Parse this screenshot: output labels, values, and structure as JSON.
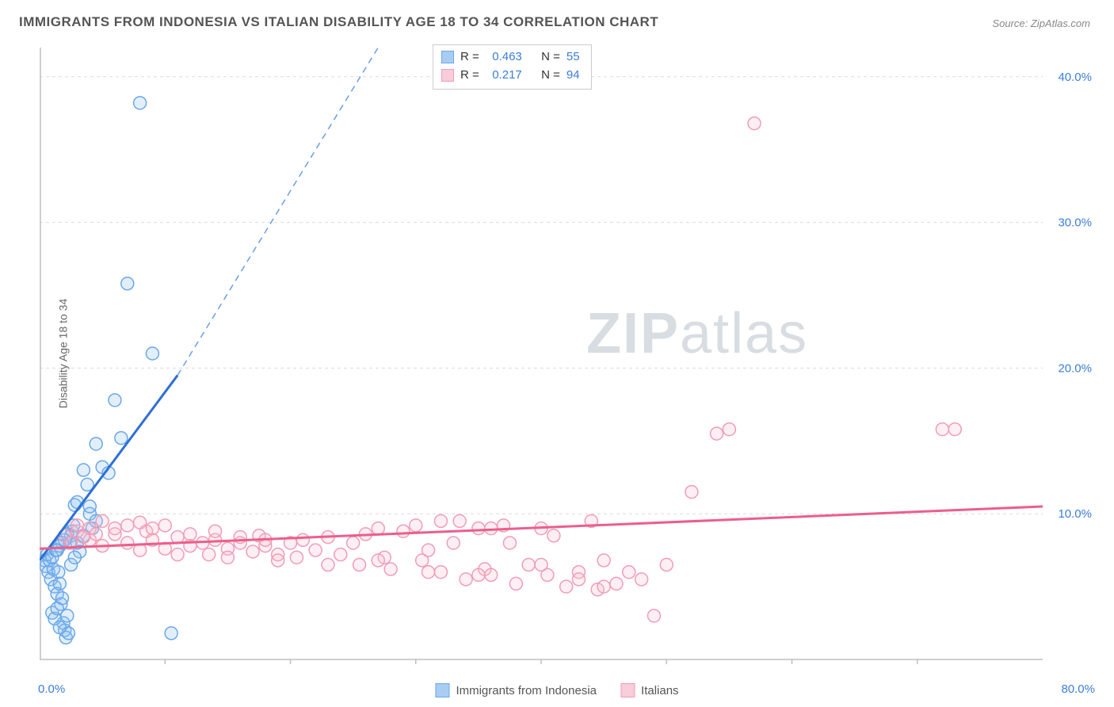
{
  "title": "IMMIGRANTS FROM INDONESIA VS ITALIAN DISABILITY AGE 18 TO 34 CORRELATION CHART",
  "source_label": "Source:",
  "source_value": "ZipAtlas.com",
  "y_axis_label": "Disability Age 18 to 34",
  "watermark_bold": "ZIP",
  "watermark_light": "atlas",
  "chart": {
    "type": "scatter",
    "xlim": [
      0,
      80
    ],
    "ylim": [
      0,
      42
    ],
    "x_ticks": [
      0,
      80
    ],
    "x_tick_labels": [
      "0.0%",
      "80.0%"
    ],
    "y_ticks": [
      10,
      20,
      30,
      40
    ],
    "y_tick_labels": [
      "10.0%",
      "20.0%",
      "30.0%",
      "40.0%"
    ],
    "grid_color": "#dcdcdc",
    "axis_color": "#bfbfbf",
    "background_color": "#ffffff",
    "marker_radius": 8,
    "marker_stroke_width": 1.5,
    "marker_fill_opacity": 0.25,
    "series": [
      {
        "name": "Immigrants from Indonesia",
        "color_stroke": "#6aa7e8",
        "color_fill": "#8cbef0",
        "trend_color": "#2e6fd6",
        "R": "0.463",
        "N": "55",
        "trend": {
          "x1": 0,
          "y1": 6.8,
          "x2_solid": 11,
          "y2_solid": 19.5,
          "x2_dash": 27,
          "y2_dash": 42
        },
        "points": [
          [
            0.4,
            6.8
          ],
          [
            0.5,
            6.4
          ],
          [
            0.6,
            7.2
          ],
          [
            0.7,
            6.0
          ],
          [
            0.8,
            6.8
          ],
          [
            0.9,
            5.5
          ],
          [
            1.0,
            7.0
          ],
          [
            1.1,
            6.2
          ],
          [
            1.2,
            5.0
          ],
          [
            1.3,
            7.5
          ],
          [
            1.4,
            4.5
          ],
          [
            1.5,
            6.0
          ],
          [
            1.6,
            5.2
          ],
          [
            1.7,
            3.8
          ],
          [
            1.8,
            4.2
          ],
          [
            1.9,
            2.5
          ],
          [
            2.0,
            2.0
          ],
          [
            2.1,
            1.5
          ],
          [
            2.2,
            3.0
          ],
          [
            2.3,
            1.8
          ],
          [
            2.4,
            8.0
          ],
          [
            2.5,
            8.5
          ],
          [
            2.6,
            8.8
          ],
          [
            2.7,
            9.2
          ],
          [
            1.0,
            3.2
          ],
          [
            1.2,
            2.8
          ],
          [
            1.4,
            3.5
          ],
          [
            1.6,
            2.2
          ],
          [
            2.8,
            10.6
          ],
          [
            3.0,
            8.0
          ],
          [
            3.2,
            7.4
          ],
          [
            3.5,
            13.0
          ],
          [
            3.8,
            12.0
          ],
          [
            4.0,
            10.0
          ],
          [
            4.2,
            9.0
          ],
          [
            4.5,
            14.8
          ],
          [
            5.0,
            13.2
          ],
          [
            5.5,
            12.8
          ],
          [
            6.0,
            17.8
          ],
          [
            6.5,
            15.2
          ],
          [
            7.0,
            25.8
          ],
          [
            8.0,
            38.2
          ],
          [
            9.0,
            21.0
          ],
          [
            10.5,
            1.8
          ],
          [
            2.0,
            8.2
          ],
          [
            2.2,
            8.6
          ],
          [
            1.8,
            8.0
          ],
          [
            1.6,
            7.8
          ],
          [
            1.4,
            7.5
          ],
          [
            3.0,
            10.8
          ],
          [
            2.5,
            6.5
          ],
          [
            2.8,
            7.0
          ],
          [
            3.5,
            8.5
          ],
          [
            4.0,
            10.5
          ],
          [
            4.5,
            9.5
          ]
        ]
      },
      {
        "name": "Italians",
        "color_stroke": "#f19cb7",
        "color_fill": "#f7bfd0",
        "trend_color": "#ec5e8c",
        "R": "0.217",
        "N": "94",
        "trend": {
          "x1": 0,
          "y1": 7.6,
          "x2_solid": 80,
          "y2_solid": 10.5
        },
        "points": [
          [
            2,
            8.5
          ],
          [
            3,
            8.8
          ],
          [
            4,
            8.2
          ],
          [
            5,
            7.8
          ],
          [
            6,
            8.6
          ],
          [
            7,
            8.0
          ],
          [
            8,
            7.5
          ],
          [
            8.5,
            8.8
          ],
          [
            9,
            8.2
          ],
          [
            10,
            7.6
          ],
          [
            11,
            8.4
          ],
          [
            12,
            7.8
          ],
          [
            13,
            8.0
          ],
          [
            13.5,
            7.2
          ],
          [
            14,
            8.2
          ],
          [
            15,
            7.6
          ],
          [
            16,
            8.0
          ],
          [
            17,
            7.4
          ],
          [
            17.5,
            8.5
          ],
          [
            18,
            7.8
          ],
          [
            19,
            7.2
          ],
          [
            20,
            8.0
          ],
          [
            20.5,
            7.0
          ],
          [
            21,
            8.2
          ],
          [
            22,
            7.5
          ],
          [
            23,
            8.4
          ],
          [
            24,
            7.2
          ],
          [
            25,
            8.0
          ],
          [
            25.5,
            6.5
          ],
          [
            26,
            8.6
          ],
          [
            27,
            9.0
          ],
          [
            27.5,
            7.0
          ],
          [
            28,
            6.2
          ],
          [
            29,
            8.8
          ],
          [
            30,
            9.2
          ],
          [
            30.5,
            6.8
          ],
          [
            31,
            7.5
          ],
          [
            32,
            6.0
          ],
          [
            33,
            8.0
          ],
          [
            33.5,
            9.5
          ],
          [
            34,
            5.5
          ],
          [
            35,
            9.0
          ],
          [
            35.5,
            6.2
          ],
          [
            36,
            5.8
          ],
          [
            37,
            9.2
          ],
          [
            37.5,
            8.0
          ],
          [
            38,
            5.2
          ],
          [
            39,
            6.5
          ],
          [
            40,
            9.0
          ],
          [
            40.5,
            5.8
          ],
          [
            41,
            8.5
          ],
          [
            42,
            5.0
          ],
          [
            43,
            6.0
          ],
          [
            44,
            9.5
          ],
          [
            44.5,
            4.8
          ],
          [
            45,
            6.8
          ],
          [
            46,
            5.2
          ],
          [
            47,
            6.0
          ],
          [
            48,
            5.5
          ],
          [
            49,
            3.0
          ],
          [
            50,
            6.5
          ],
          [
            52,
            11.5
          ],
          [
            54,
            15.5
          ],
          [
            55,
            15.8
          ],
          [
            57,
            36.8
          ],
          [
            72,
            15.8
          ],
          [
            73,
            15.8
          ],
          [
            3,
            9.2
          ],
          [
            4,
            9.0
          ],
          [
            5,
            9.5
          ],
          [
            6,
            9.0
          ],
          [
            7,
            9.2
          ],
          [
            8,
            9.4
          ],
          [
            9,
            9.0
          ],
          [
            10,
            9.2
          ],
          [
            2.5,
            8.0
          ],
          [
            3.5,
            8.4
          ],
          [
            4.5,
            8.6
          ],
          [
            12,
            8.6
          ],
          [
            14,
            8.8
          ],
          [
            16,
            8.4
          ],
          [
            18,
            8.2
          ],
          [
            11,
            7.2
          ],
          [
            15,
            7.0
          ],
          [
            19,
            6.8
          ],
          [
            23,
            6.5
          ],
          [
            27,
            6.8
          ],
          [
            31,
            6.0
          ],
          [
            35,
            5.8
          ],
          [
            32,
            9.5
          ],
          [
            36,
            9.0
          ],
          [
            40,
            6.5
          ],
          [
            43,
            5.5
          ],
          [
            45,
            5.0
          ]
        ]
      }
    ]
  },
  "legend": {
    "items": [
      {
        "label": "Immigrants from Indonesia",
        "fill": "#a9cdf2",
        "stroke": "#6aa7e8"
      },
      {
        "label": "Italians",
        "fill": "#f7cdd9",
        "stroke": "#f19cb7"
      }
    ]
  },
  "stats_box": {
    "rows": [
      {
        "swatch_fill": "#a9cdf2",
        "swatch_stroke": "#6aa7e8",
        "r_label": "R =",
        "r_val": "0.463",
        "n_label": "N =",
        "n_val": "55"
      },
      {
        "swatch_fill": "#f7cdd9",
        "swatch_stroke": "#f19cb7",
        "r_label": "R =",
        "r_val": "0.217",
        "n_label": "N =",
        "n_val": "94"
      }
    ]
  }
}
